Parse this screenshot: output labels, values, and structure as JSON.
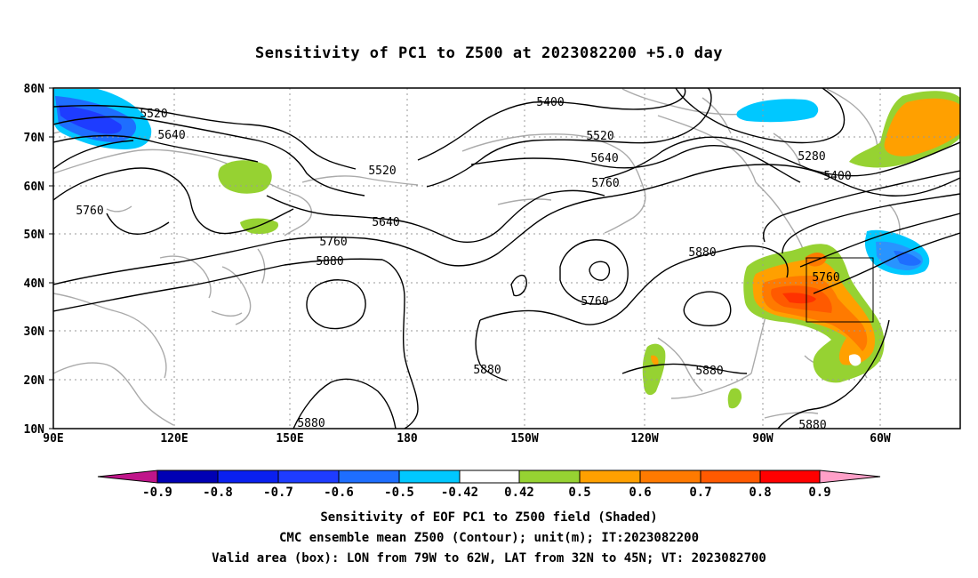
{
  "title": "Sensitivity of PC1 to Z500 at 2023082200 +5.0 day",
  "lat_labels": [
    "80N",
    "70N",
    "60N",
    "50N",
    "40N",
    "30N",
    "20N",
    "10N"
  ],
  "lon_labels": [
    "90E",
    "120E",
    "150E",
    "180",
    "150W",
    "120W",
    "90W",
    "60W"
  ],
  "contour_labels": {
    "c5520a": "5520",
    "c5640a": "5640",
    "c5760a": "5760",
    "c5400a": "5400",
    "c5520b": "5520",
    "c5520c": "5520",
    "c5640b": "5640",
    "c5640c": "5640",
    "c5760b": "5760",
    "c5760c": "5760",
    "c5880a": "5880",
    "c5880b": "5880",
    "c5760d": "5760",
    "c5880c": "5880",
    "c5880d": "5880",
    "c5880e": "5880",
    "c5280": "5280",
    "c5400b": "5400",
    "c5760e": "5760",
    "c5880f": "5880"
  },
  "colorbar": {
    "labels": [
      "-0.9",
      "-0.8",
      "-0.7",
      "-0.6",
      "-0.5",
      "-0.42",
      "0.42",
      "0.5",
      "0.6",
      "0.7",
      "0.8",
      "0.9"
    ],
    "colors": {
      "neg_extreme": "#c0158a",
      "n09": "#0000b4",
      "n08": "#0a20f0",
      "n07": "#1e3cff",
      "n06": "#1e6eff",
      "n05": "#2894ff",
      "n042": "#00c8ff",
      "neutral": "#ffffff",
      "p042": "#96d232",
      "p05": "#ffa000",
      "p06": "#ff7a00",
      "p07": "#ff5a00",
      "p08": "#ff3200",
      "p09": "#ff0000",
      "pos_extreme": "#ffa0c8"
    }
  },
  "captions": {
    "line1": "Sensitivity of EOF PC1 to Z500 field (Shaded)",
    "line2": "CMC ensemble mean Z500 (Contour); unit(m); IT:2023082200",
    "line3": "Valid area (box): LON from 79W to 62W, LAT from 32N to 45N; VT: 2023082700"
  },
  "valid_box": {
    "lon_west": "79W",
    "lon_east": "62W",
    "lat_south": "32N",
    "lat_north": "45N"
  }
}
